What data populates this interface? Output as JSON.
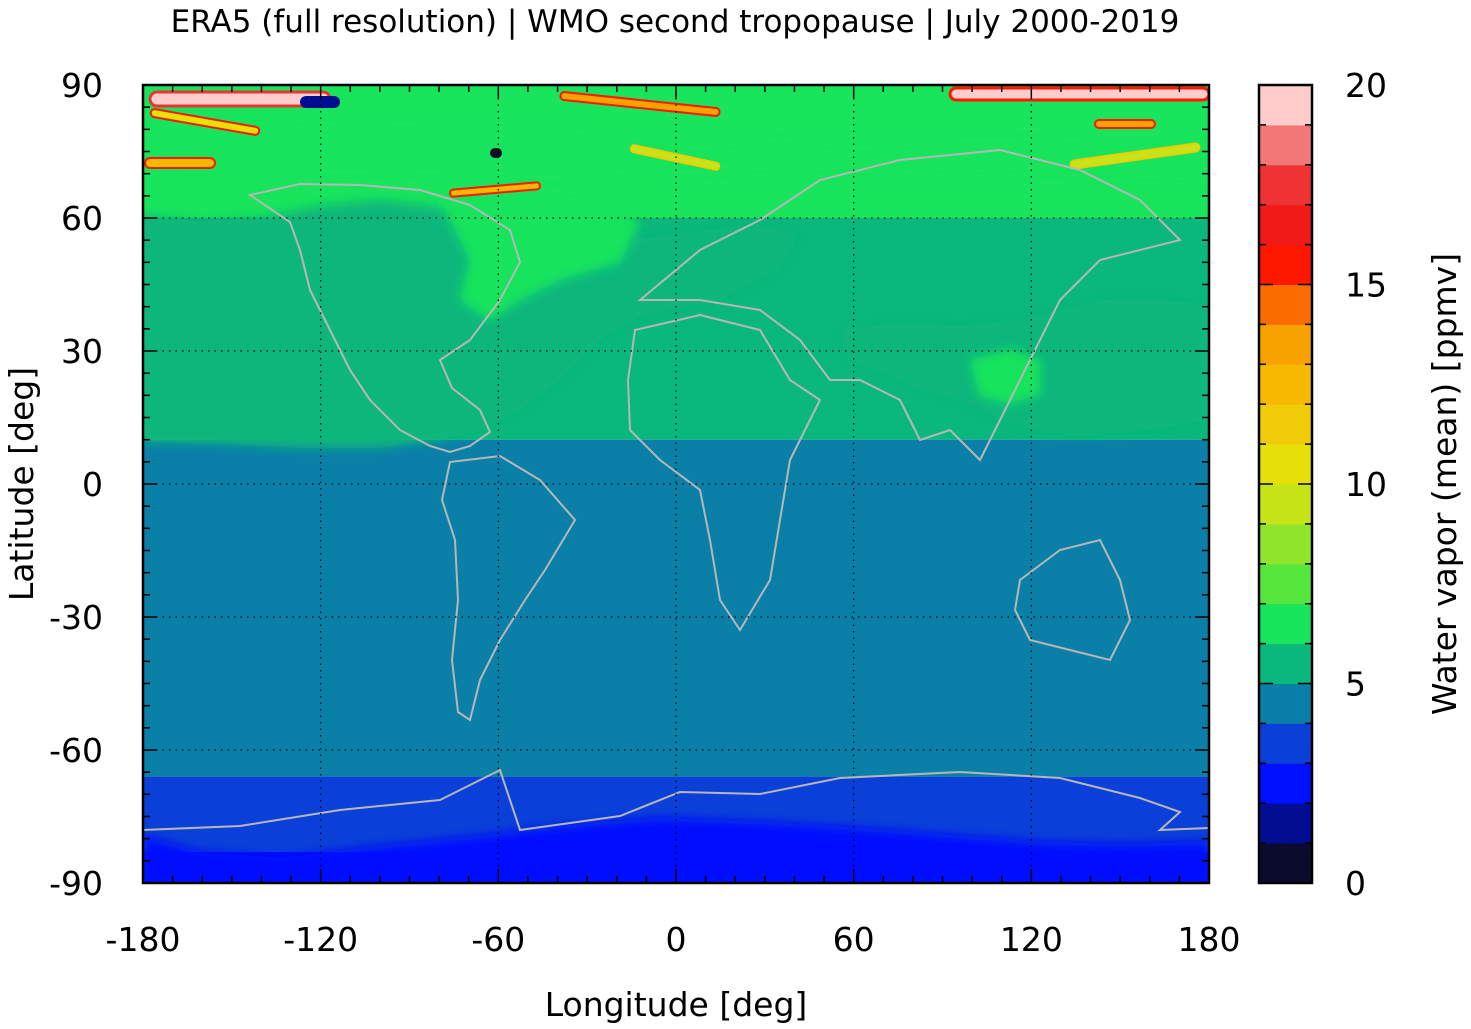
{
  "chart_data": {
    "type": "heatmap",
    "title": "ERA5 (full resolution) | WMO second tropopause | July 2000-2019",
    "xlabel": "Longitude [deg]",
    "ylabel": "Latitude [deg]",
    "colorbar_label": "Water vapor (mean) [ppmv]",
    "xlim": [
      -180,
      180
    ],
    "ylim": [
      -90,
      90
    ],
    "xticks": [
      -180,
      -120,
      -60,
      0,
      60,
      120,
      180
    ],
    "yticks": [
      90,
      60,
      30,
      0,
      -30,
      -60,
      -90
    ],
    "colorbar_ticks": [
      20,
      15,
      10,
      5,
      0
    ],
    "colorbar_range": [
      0,
      20
    ],
    "grid": true,
    "colorbar_levels": [
      {
        "from": 0,
        "to": 1,
        "color": "#0b0b2e"
      },
      {
        "from": 1,
        "to": 2,
        "color": "#020e92"
      },
      {
        "from": 2,
        "to": 3,
        "color": "#0010ff"
      },
      {
        "from": 3,
        "to": 4,
        "color": "#0a40d8"
      },
      {
        "from": 4,
        "to": 5,
        "color": "#0a7fa8"
      },
      {
        "from": 5,
        "to": 6,
        "color": "#0ab77c"
      },
      {
        "from": 6,
        "to": 7,
        "color": "#18e45c"
      },
      {
        "from": 7,
        "to": 8,
        "color": "#56e63c"
      },
      {
        "from": 8,
        "to": 9,
        "color": "#90e42c"
      },
      {
        "from": 9,
        "to": 10,
        "color": "#c6e418"
      },
      {
        "from": 10,
        "to": 11,
        "color": "#e6e008"
      },
      {
        "from": 11,
        "to": 12,
        "color": "#f0cc08"
      },
      {
        "from": 12,
        "to": 13,
        "color": "#f6b800"
      },
      {
        "from": 13,
        "to": 14,
        "color": "#f8a200"
      },
      {
        "from": 14,
        "to": 15,
        "color": "#fb6c00"
      },
      {
        "from": 15,
        "to": 16,
        "color": "#ff1800"
      },
      {
        "from": 16,
        "to": 17,
        "color": "#f21a18"
      },
      {
        "from": 17,
        "to": 18,
        "color": "#ef3232"
      },
      {
        "from": 18,
        "to": 19,
        "color": "#f27878"
      },
      {
        "from": 19,
        "to": 20,
        "color": "#ffcccc"
      }
    ],
    "zonal_bands": [
      {
        "lat_from": -90,
        "lat_to": -83,
        "value": 2.5,
        "color": "#0010ff"
      },
      {
        "lat_from": -83,
        "lat_to": -66,
        "value": 3.5,
        "color": "#0a40d8"
      },
      {
        "lat_from": -66,
        "lat_to": 10,
        "value": 4.5,
        "color": "#0a7fa8"
      },
      {
        "lat_from": 10,
        "lat_to": 60,
        "value": 5.5,
        "color": "#0ab77c",
        "note": "over Americas-Atlantic (-180 to -30) and Asia-Pacific (60 to 180)"
      },
      {
        "lat_from": 60,
        "lat_to": 90,
        "value": 6.5,
        "color": "#18e45c",
        "note": "patchy, with streaks up to 20 ppmv near the pole"
      }
    ],
    "overlay": "coastlines (grey)"
  }
}
